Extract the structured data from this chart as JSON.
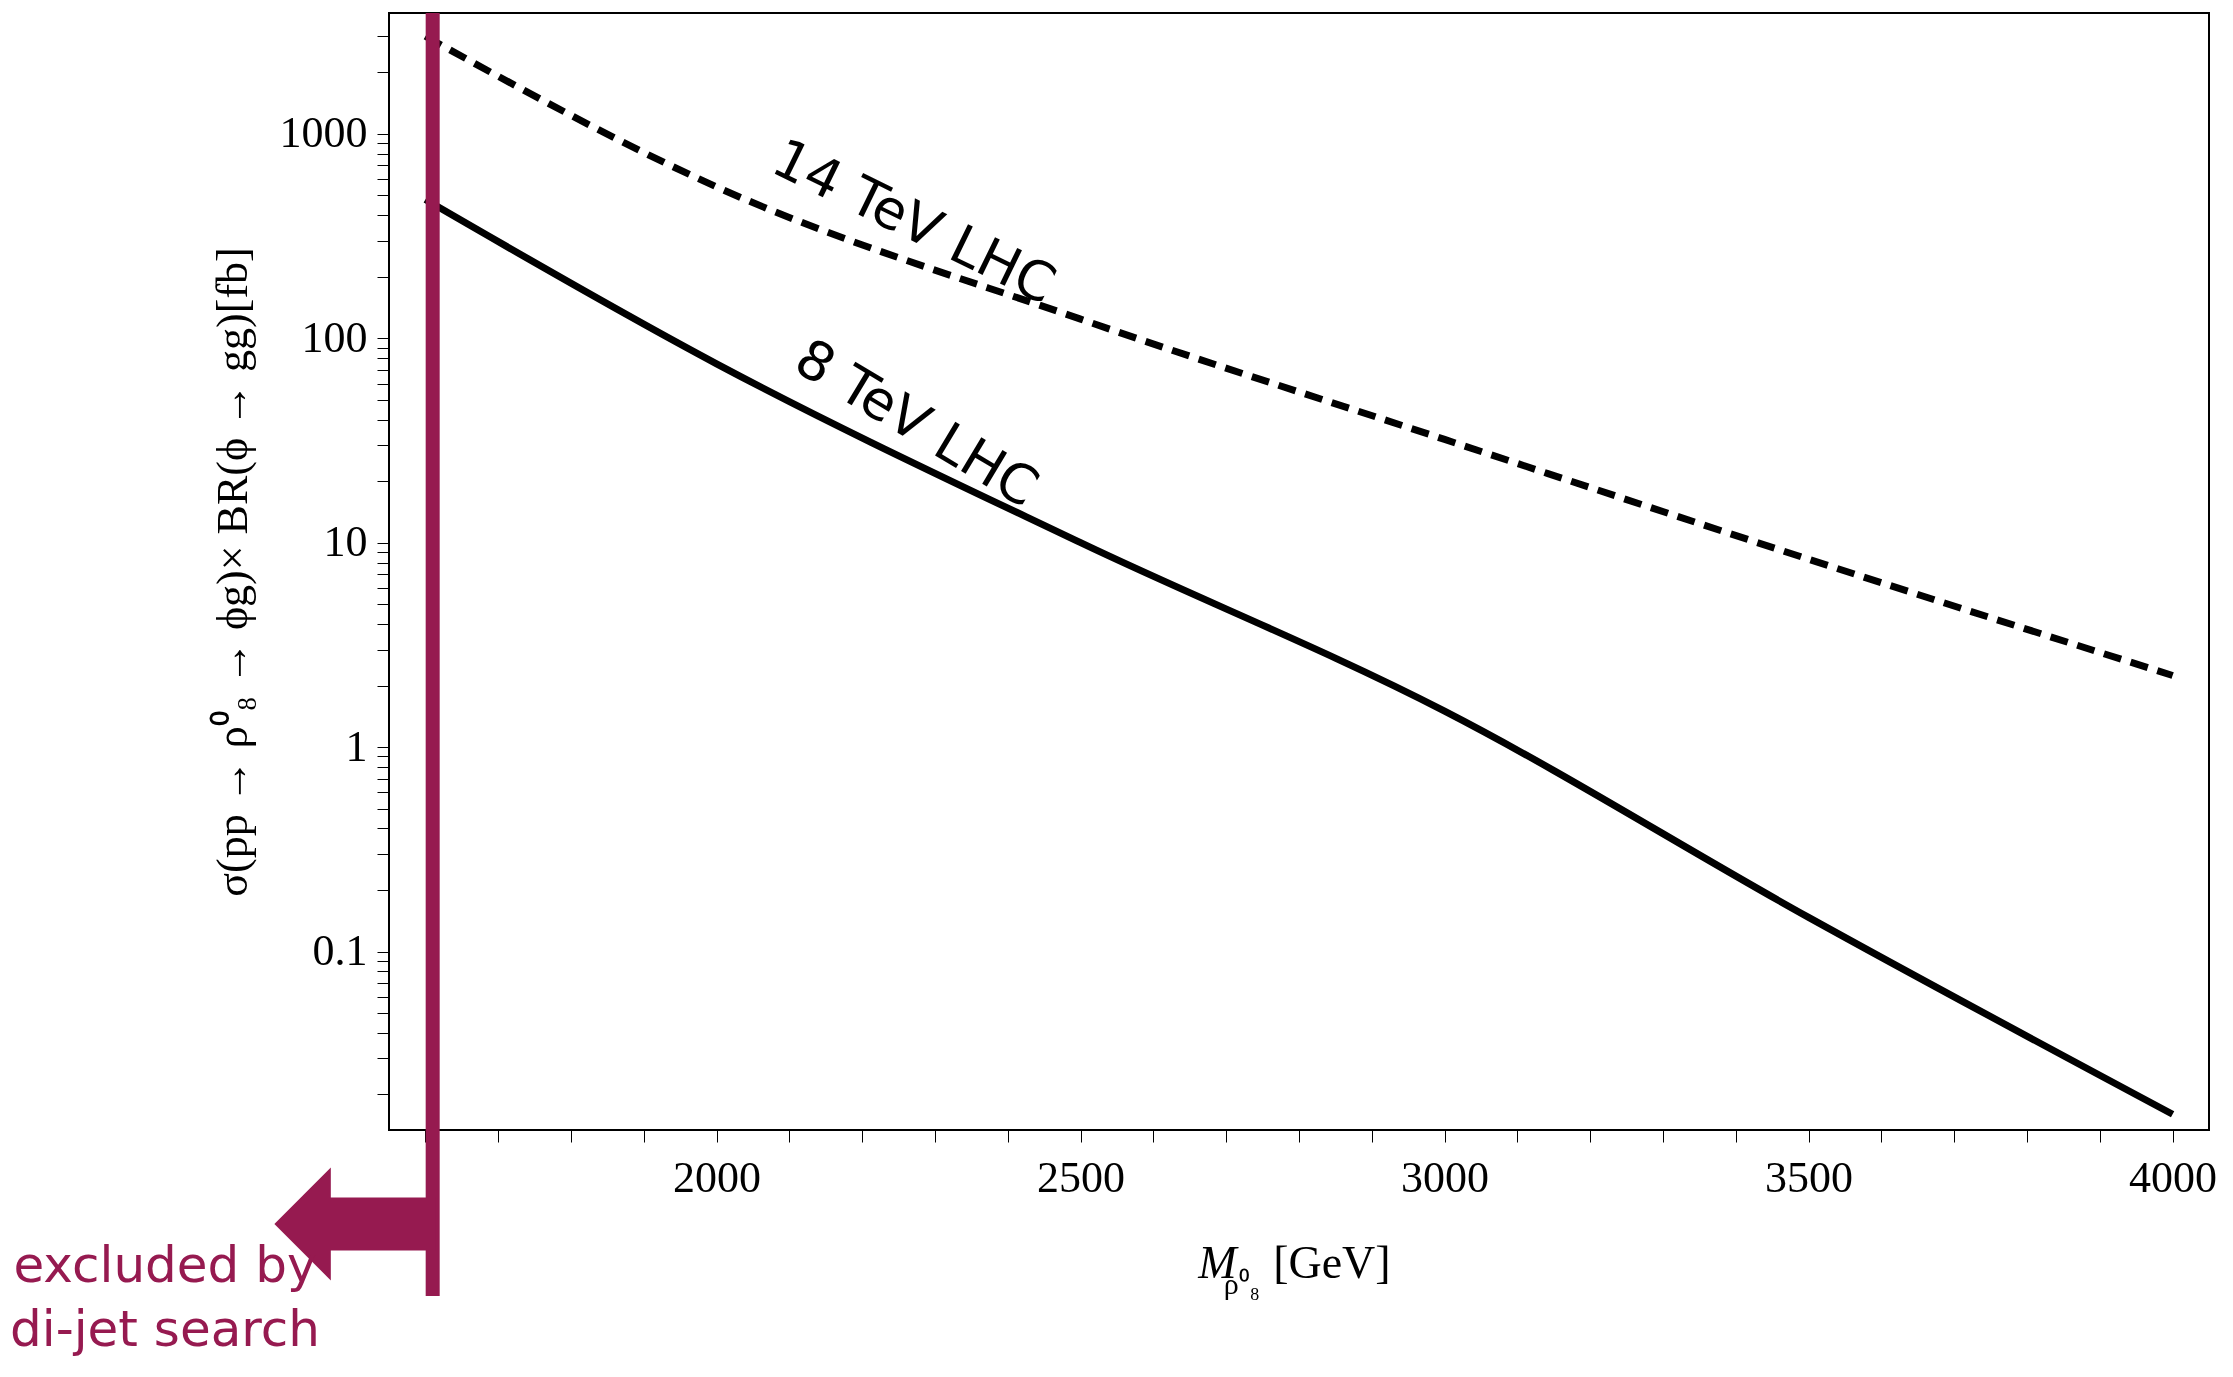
{
  "chart_data": {
    "type": "line",
    "xlabel": "M$_{ρ⁰₈}$[GeV]",
    "ylabel": "σ(pp → ρ⁰₈ → ϕg)× BR(ϕ → gg)[fb]",
    "log": "y",
    "grid": false,
    "xlim": [
      1550,
      4050
    ],
    "ylim": [
      0.0134,
      3900
    ],
    "xticks": [
      {
        "value": 1600,
        "label": null
      },
      {
        "value": 1700,
        "label": null
      },
      {
        "value": 1800,
        "label": null
      },
      {
        "value": 1900,
        "label": null
      },
      2000,
      {
        "value": 2100,
        "label": null
      },
      {
        "value": 2200,
        "label": null
      },
      {
        "value": 2300,
        "label": null
      },
      {
        "value": 2400,
        "label": null
      },
      2500,
      {
        "value": 2600,
        "label": null
      },
      {
        "value": 2700,
        "label": null
      },
      {
        "value": 2800,
        "label": null
      },
      {
        "value": 2900,
        "label": null
      },
      3000,
      {
        "value": 3100,
        "label": null
      },
      {
        "value": 3200,
        "label": null
      },
      {
        "value": 3300,
        "label": null
      },
      {
        "value": 3400,
        "label": null
      },
      3500,
      {
        "value": 3600,
        "label": null
      },
      {
        "value": 3700,
        "label": null
      },
      {
        "value": 3800,
        "label": null
      },
      {
        "value": 3900,
        "label": null
      },
      4000
    ],
    "yticks": [
      {
        "value": 0.02,
        "label": null
      },
      {
        "value": 0.03,
        "label": null
      },
      {
        "value": 0.04,
        "label": null
      },
      {
        "value": 0.05,
        "label": null
      },
      {
        "value": 0.06,
        "label": null
      },
      {
        "value": 0.07,
        "label": null
      },
      {
        "value": 0.08,
        "label": null
      },
      {
        "value": 0.09,
        "label": null
      },
      0.1,
      {
        "value": 0.2,
        "label": null
      },
      {
        "value": 0.3,
        "label": null
      },
      {
        "value": 0.4,
        "label": null
      },
      {
        "value": 0.5,
        "label": null
      },
      {
        "value": 0.6,
        "label": null
      },
      {
        "value": 0.7,
        "label": null
      },
      {
        "value": 0.8,
        "label": null
      },
      {
        "value": 0.9,
        "label": null
      },
      1,
      {
        "value": 2,
        "label": null
      },
      {
        "value": 3,
        "label": null
      },
      {
        "value": 4,
        "label": null
      },
      {
        "value": 5,
        "label": null
      },
      {
        "value": 6,
        "label": null
      },
      {
        "value": 7,
        "label": null
      },
      {
        "value": 8,
        "label": null
      },
      {
        "value": 9,
        "label": null
      },
      10,
      {
        "value": 20,
        "label": null
      },
      {
        "value": 30,
        "label": null
      },
      {
        "value": 40,
        "label": null
      },
      {
        "value": 50,
        "label": null
      },
      {
        "value": 60,
        "label": null
      },
      {
        "value": 70,
        "label": null
      },
      {
        "value": 80,
        "label": null
      },
      {
        "value": 90,
        "label": null
      },
      100,
      {
        "value": 200,
        "label": null
      },
      {
        "value": 300,
        "label": null
      },
      {
        "value": 400,
        "label": null
      },
      {
        "value": 500,
        "label": null
      },
      {
        "value": 600,
        "label": null
      },
      {
        "value": 700,
        "label": null
      },
      {
        "value": 800,
        "label": null
      },
      {
        "value": 900,
        "label": null
      },
      1000,
      {
        "value": 2000,
        "label": null
      },
      {
        "value": 3000,
        "label": null
      }
    ],
    "x": [
      1600,
      2000,
      2500,
      3000,
      3500,
      4000
    ],
    "series": [
      {
        "name": "14 TeV LHC",
        "color": "#000000",
        "line_style": "dashed",
        "values": [
          3000,
          550,
          124,
          32,
          8.3,
          2.24
        ]
      },
      {
        "name": "8 TeV LHC",
        "color": "#000000",
        "line_style": "solid",
        "values": [
          477,
          75,
          10,
          1.5,
          0.147,
          0.016
        ]
      }
    ],
    "ref_lines": [
      {
        "axis": "x",
        "value": 1610,
        "label": "excluded by\ndi-jet search",
        "color": "#961a50"
      }
    ]
  }
}
